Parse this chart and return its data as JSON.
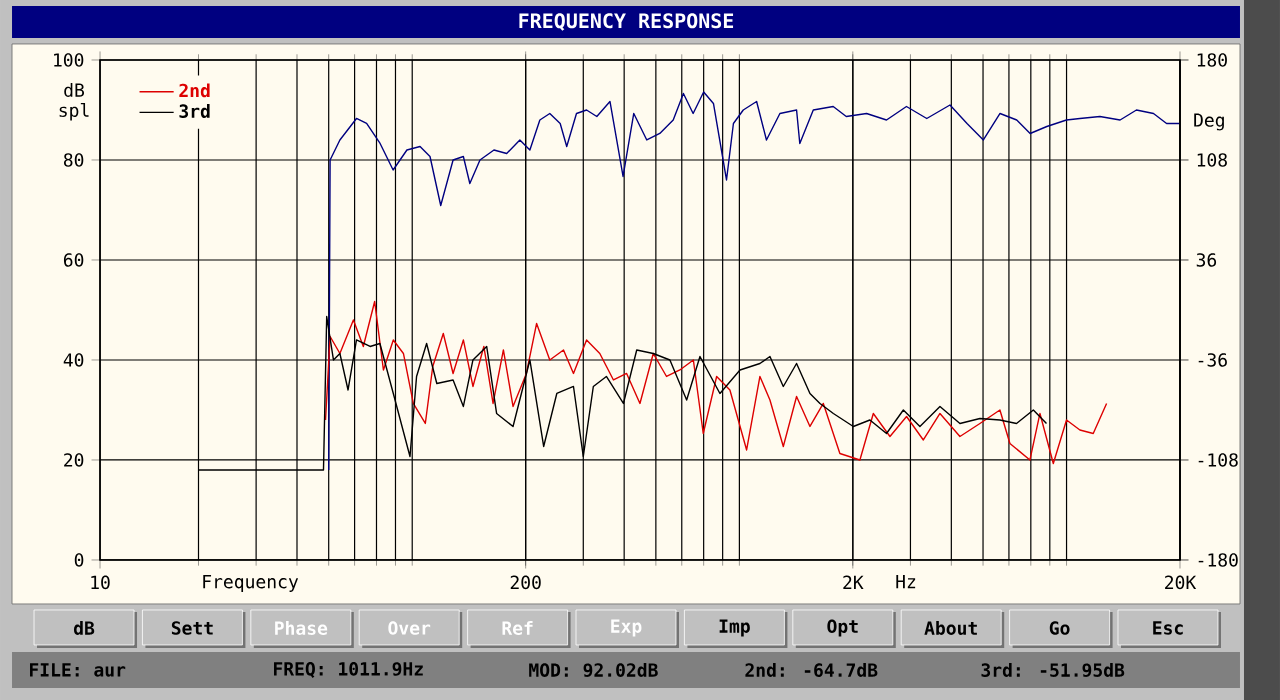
{
  "chart_data": {
    "type": "line",
    "title": "FREQUENCY RESPONSE",
    "xlabel": "Frequency",
    "ylabel": "dB spl",
    "y2label": "Deg",
    "log": "x",
    "grid": true,
    "legend": "top left",
    "xlim": [
      10,
      20000
    ],
    "xticks": [
      10,
      200,
      {
        "value": 2000,
        "label": "2K"
      },
      {
        "value": 20000,
        "label": "20K"
      }
    ],
    "ylim": [
      0,
      100
    ],
    "yticks": [
      0,
      20,
      40,
      60,
      80,
      100
    ],
    "y2lim": [
      -180,
      180
    ],
    "y2ticks": [
      -180,
      -108,
      -36,
      36,
      108,
      180
    ],
    "series": [
      {
        "color": "#000080",
        "x": [
          50,
          50.5,
          54.1,
          60.8,
          65.3,
          71.8,
          78.7,
          86.7,
          95.1,
          102,
          110,
          120,
          129,
          135,
          145,
          160,
          175,
          192,
          206,
          221,
          237,
          255,
          267,
          286,
          307,
          330,
          362,
          397,
          428,
          469,
          514,
          565,
          607,
          650,
          700,
          750,
          822,
          863,
          925,
          1016,
          1089,
          1197,
          1346,
          1377,
          1514,
          1742,
          1910,
          2203,
          2535,
          2917,
          3365,
          3963,
          4467,
          5012,
          5636,
          6339,
          6966,
          7834,
          8995,
          9886,
          11380,
          13120,
          14720,
          16600,
          18200,
          20000
        ],
        "values": [
          18,
          80,
          84,
          88.3,
          87.3,
          83.3,
          78,
          82,
          82.7,
          80.7,
          70.9,
          80,
          80.7,
          75.3,
          80,
          82,
          81.3,
          84,
          82,
          88,
          89.3,
          87.3,
          82.7,
          89.3,
          90,
          88.7,
          91.7,
          76.7,
          89.3,
          84,
          85.3,
          88,
          93.3,
          89.3,
          93.6,
          91.3,
          76,
          87.3,
          90,
          91.7,
          84,
          89.3,
          90,
          83.3,
          90,
          90.7,
          88.7,
          89.3,
          88,
          90.7,
          88.3,
          91,
          87.3,
          84,
          89.3,
          88,
          85.3,
          86.7,
          88,
          88.3,
          88.7,
          88,
          90,
          89.3,
          87.3,
          87.3
        ]
      },
      {
        "name": "2nd",
        "color": "#dd0000",
        "x": [
          48.9,
          50.5,
          54.1,
          59.5,
          63.8,
          69.1,
          73.5,
          78.8,
          84.6,
          90.7,
          98.7,
          104,
          112,
          120,
          129,
          138,
          149,
          159,
          171,
          183,
          201,
          216,
          237,
          261,
          280,
          307,
          337,
          371,
          407,
          447,
          491,
          539,
          592,
          651,
          698,
          767,
          842,
          947,
          1040,
          1116,
          1226,
          1346,
          1479,
          1625,
          1826,
          2102,
          2310,
          2597,
          2919,
          3285,
          3693,
          4250,
          4892,
          5631,
          6042,
          6956,
          7464,
          8200,
          8999,
          9887,
          10860,
          11930
        ],
        "values": [
          28,
          44.7,
          41.3,
          48,
          42.7,
          51.7,
          38,
          44,
          41.3,
          31.3,
          27.3,
          38.7,
          45.3,
          37.3,
          44,
          34.7,
          42.7,
          31.3,
          42,
          30.7,
          37.3,
          47.3,
          40,
          42,
          37.3,
          44,
          41.3,
          36,
          37.3,
          31.3,
          41.3,
          36.7,
          38,
          40,
          25.3,
          36.7,
          34,
          22,
          36.7,
          32,
          22.7,
          32.7,
          26.7,
          31.3,
          21.3,
          20,
          29.3,
          24.7,
          28.7,
          24,
          29.3,
          24.7,
          27.3,
          30,
          23.3,
          20,
          29.3,
          19.3,
          28,
          26,
          25.3,
          31.3
        ]
      },
      {
        "name": "3rd",
        "color": "#000000",
        "x": [
          20,
          48.2,
          49.3,
          51.7,
          54.1,
          57.3,
          60.8,
          66.9,
          71.7,
          78.8,
          88.6,
          92.8,
          99.6,
          107,
          120,
          129,
          138,
          152,
          163,
          183,
          206,
          227,
          249,
          280,
          300,
          322,
          353,
          398,
          437,
          491,
          552,
          621,
          682,
          785,
          904,
          1040,
          1116,
          1226,
          1346,
          1479,
          1587,
          1744,
          2007,
          2255,
          2535,
          2854,
          3207,
          3693,
          4250,
          4892,
          5631,
          6329,
          7125,
          7816
        ],
        "values": [
          18,
          18,
          48.7,
          40,
          41.3,
          34,
          44,
          42.7,
          43.3,
          33.3,
          20.7,
          36.7,
          43.3,
          35.3,
          36,
          30.7,
          40,
          42.7,
          29.3,
          26.7,
          40,
          22.7,
          33.3,
          34.7,
          20.7,
          34.7,
          36.7,
          31.3,
          42,
          41.3,
          40,
          32,
          40.7,
          33.3,
          38,
          39.3,
          40.7,
          34.7,
          39.3,
          33.3,
          31.3,
          29.3,
          26.7,
          28,
          25.3,
          30,
          26.7,
          30.7,
          27.3,
          28.3,
          28,
          27.3,
          30,
          27.3
        ]
      }
    ],
    "annotations": [
      "Hz",
      "dB",
      "Sett",
      "Phase",
      "Over",
      "Ref",
      "Exp",
      "Imp",
      "Opt",
      "About",
      "Go",
      "Esc",
      "FILE: aur",
      "FREQ: 1011.9Hz",
      "MOD: 92.02dB",
      "2nd: -64.7dB",
      "3rd: -51.95dB"
    ]
  }
}
